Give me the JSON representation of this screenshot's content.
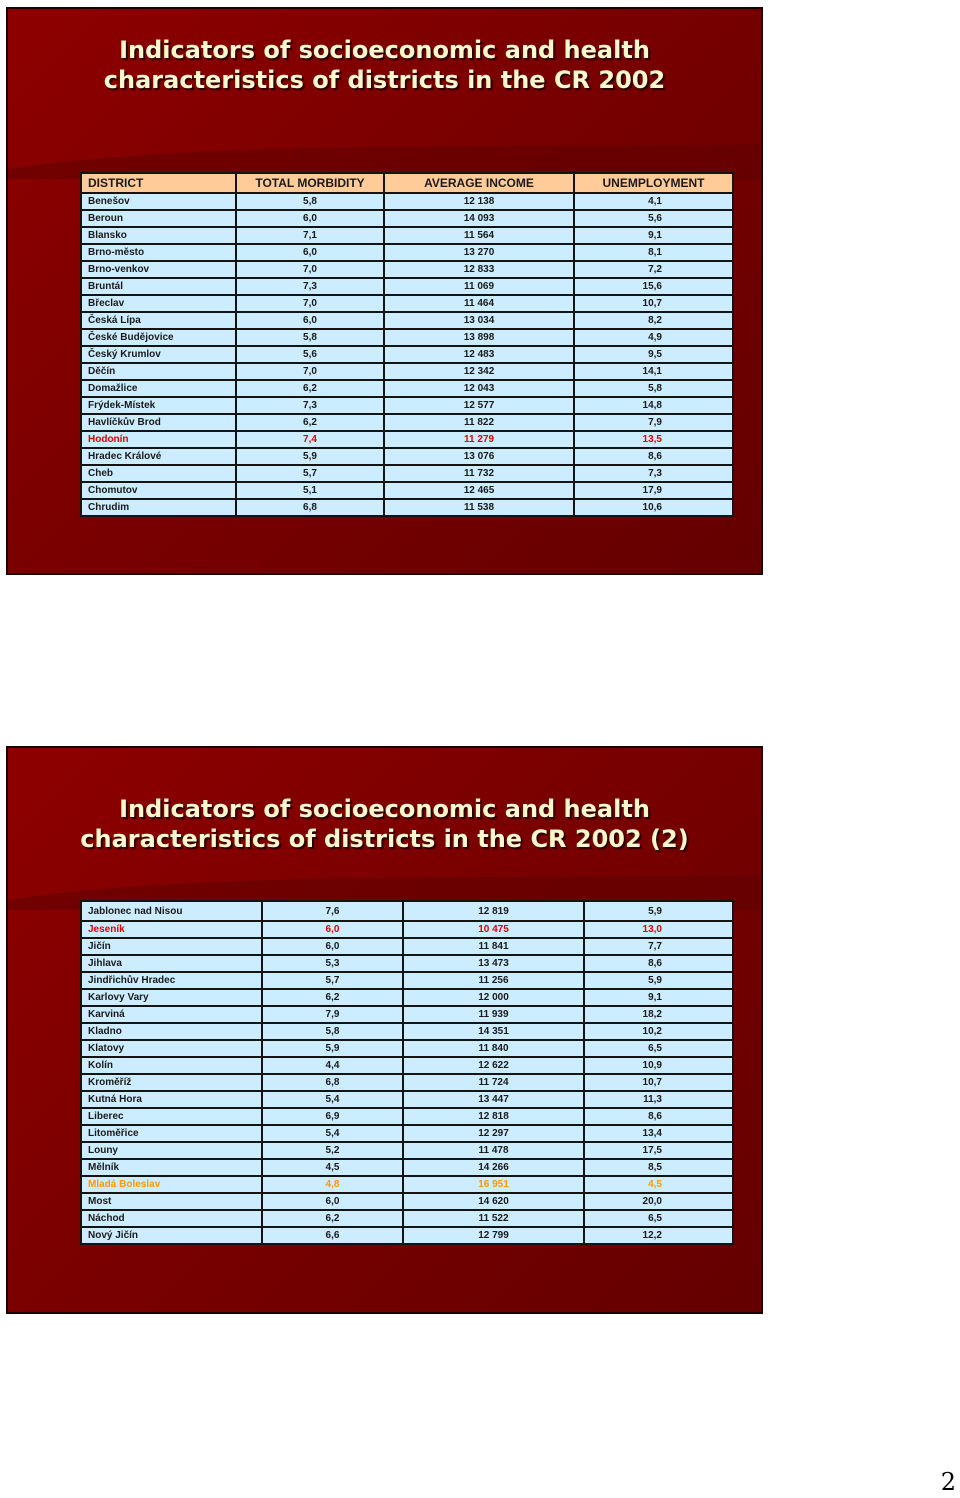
{
  "slide1": {
    "title_line1": "Indicators of socioeconomic and health",
    "title_line2": "characteristics of districts in the CR 2002",
    "headers": [
      "DISTRICT",
      "TOTAL MORBIDITY",
      "AVERAGE INCOME",
      "UNEMPLOYMENT"
    ],
    "rows": [
      {
        "district": "Benešov",
        "morbidity": "5,8",
        "income": "12 138",
        "unemployment": "4,1"
      },
      {
        "district": "Beroun",
        "morbidity": "6,0",
        "income": "14 093",
        "unemployment": "5,6"
      },
      {
        "district": "Blansko",
        "morbidity": "7,1",
        "income": "11 564",
        "unemployment": "9,1"
      },
      {
        "district": "Brno-město",
        "morbidity": "6,0",
        "income": "13 270",
        "unemployment": "8,1"
      },
      {
        "district": "Brno-venkov",
        "morbidity": "7,0",
        "income": "12 833",
        "unemployment": "7,2"
      },
      {
        "district": "Bruntál",
        "morbidity": "7,3",
        "income": "11 069",
        "unemployment": "15,6"
      },
      {
        "district": "Břeclav",
        "morbidity": "7,0",
        "income": "11 464",
        "unemployment": "10,7"
      },
      {
        "district": "Česká Lípa",
        "morbidity": "6,0",
        "income": "13 034",
        "unemployment": "8,2"
      },
      {
        "district": "České Budějovice",
        "morbidity": "5,8",
        "income": "13 898",
        "unemployment": "4,9"
      },
      {
        "district": "Český Krumlov",
        "morbidity": "5,6",
        "income": "12 483",
        "unemployment": "9,5"
      },
      {
        "district": "Děčín",
        "morbidity": "7,0",
        "income": "12 342",
        "unemployment": "14,1"
      },
      {
        "district": "Domažlice",
        "morbidity": "6,2",
        "income": "12 043",
        "unemployment": "5,8"
      },
      {
        "district": "Frýdek-Místek",
        "morbidity": "7,3",
        "income": "12 577",
        "unemployment": "14,8"
      },
      {
        "district": "Havlíčkův Brod",
        "morbidity": "6,2",
        "income": "11 822",
        "unemployment": "7,9"
      },
      {
        "district": "Hodonín",
        "morbidity": "7,4",
        "income": "11 279",
        "unemployment": "13,5"
      },
      {
        "district": "Hradec Králové",
        "morbidity": "5,9",
        "income": "13 076",
        "unemployment": "8,6"
      },
      {
        "district": "Cheb",
        "morbidity": "5,7",
        "income": "11 732",
        "unemployment": "7,3"
      },
      {
        "district": "Chomutov",
        "morbidity": "5,1",
        "income": "12 465",
        "unemployment": "17,9"
      },
      {
        "district": "Chrudim",
        "morbidity": "6,8",
        "income": "11 538",
        "unemployment": "10,6"
      }
    ]
  },
  "slide2": {
    "title_line1": "Indicators of socioeconomic and health",
    "title_line2": "characteristics of districts in the CR 2002 (2)",
    "rows": [
      {
        "district": "Jablonec nad Nisou",
        "morbidity": "7,6",
        "income": "12 819",
        "unemployment": "5,9"
      },
      {
        "district": "Jeseník",
        "morbidity": "6,0",
        "income": "10 475",
        "unemployment": "13,0"
      },
      {
        "district": "Jičín",
        "morbidity": "6,0",
        "income": "11 841",
        "unemployment": "7,7"
      },
      {
        "district": "Jihlava",
        "morbidity": "5,3",
        "income": "13 473",
        "unemployment": "8,6"
      },
      {
        "district": "Jindřichův Hradec",
        "morbidity": "5,7",
        "income": "11 256",
        "unemployment": "5,9"
      },
      {
        "district": "Karlovy Vary",
        "morbidity": "6,2",
        "income": "12 000",
        "unemployment": "9,1"
      },
      {
        "district": "Karviná",
        "morbidity": "7,9",
        "income": "11 939",
        "unemployment": "18,2"
      },
      {
        "district": "Kladno",
        "morbidity": "5,8",
        "income": "14 351",
        "unemployment": "10,2"
      },
      {
        "district": "Klatovy",
        "morbidity": "5,9",
        "income": "11 840",
        "unemployment": "6,5"
      },
      {
        "district": "Kolín",
        "morbidity": "4,4",
        "income": "12 622",
        "unemployment": "10,9"
      },
      {
        "district": "Kroměříž",
        "morbidity": "6,8",
        "income": "11 724",
        "unemployment": "10,7"
      },
      {
        "district": "Kutná Hora",
        "morbidity": "5,4",
        "income": "13 447",
        "unemployment": "11,3"
      },
      {
        "district": "Liberec",
        "morbidity": "6,9",
        "income": "12 818",
        "unemployment": "8,6"
      },
      {
        "district": "Litoměřice",
        "morbidity": "5,4",
        "income": "12 297",
        "unemployment": "13,4"
      },
      {
        "district": "Louny",
        "morbidity": "5,2",
        "income": "11 478",
        "unemployment": "17,5"
      },
      {
        "district": "Mělník",
        "morbidity": "4,5",
        "income": "14 266",
        "unemployment": "8,5"
      },
      {
        "district": "Mladá Boleslav",
        "morbidity": "4,8",
        "income": "16 951",
        "unemployment": "4,5"
      },
      {
        "district": "Most",
        "morbidity": "6,0",
        "income": "14 620",
        "unemployment": "20,0"
      },
      {
        "district": "Náchod",
        "morbidity": "6,2",
        "income": "11 522",
        "unemployment": "6,5"
      },
      {
        "district": "Nový Jičín",
        "morbidity": "6,6",
        "income": "12 799",
        "unemployment": "12,2"
      }
    ]
  },
  "colors": {
    "slide_background": "#7a0000",
    "title_text": "#fff8cc",
    "header_background": "#ffcc99",
    "row_background": "#ccecff",
    "highlight_red": "#e00000",
    "highlight_orange": "#ff9900"
  },
  "highlights": {
    "slide1": {
      "Hodonín": "red"
    },
    "slide2": {
      "Jeseník": "red",
      "Mladá Boleslav": "orange"
    }
  },
  "page_number": "2"
}
